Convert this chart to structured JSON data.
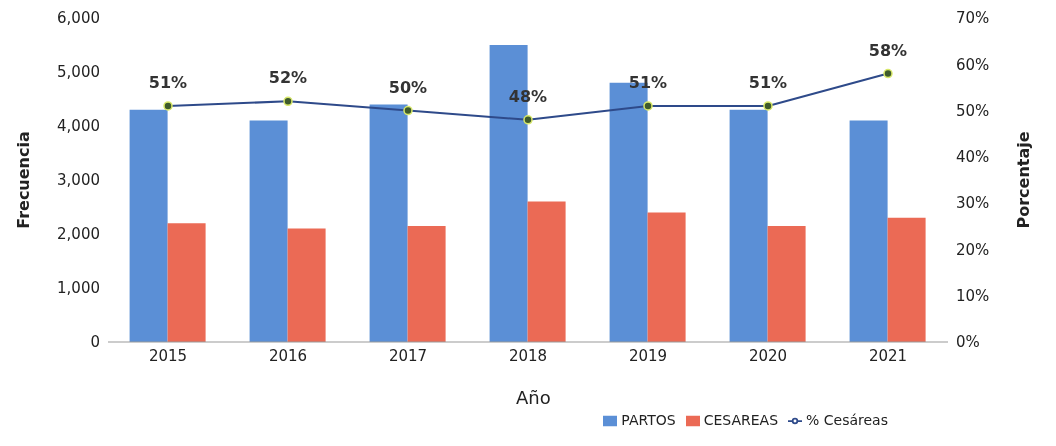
{
  "chart_data": {
    "type": "bar",
    "categories": [
      "2015",
      "2016",
      "2017",
      "2018",
      "2019",
      "2020",
      "2021"
    ],
    "xlabel": "Año",
    "ylabel": "Frecuencia",
    "y2label": "Porcentaje",
    "series": [
      {
        "name": "PARTOS",
        "color": "#5b8fd6",
        "values": [
          4300,
          4100,
          4400,
          5500,
          4800,
          4300,
          4100
        ]
      },
      {
        "name": "CESAREAS",
        "color": "#eb6a55",
        "values": [
          2200,
          2100,
          2150,
          2600,
          2400,
          2150,
          2300
        ]
      },
      {
        "name": "% Cesáreas",
        "type": "line",
        "axis": "y2",
        "color": "#2e4a8a",
        "marker": "circle",
        "values": [
          51,
          52,
          50,
          48,
          51,
          51,
          58
        ],
        "value_labels": [
          "51%",
          "52%",
          "50%",
          "48%",
          "51%",
          "51%",
          "58%"
        ]
      }
    ],
    "ylim": [
      0,
      6000
    ],
    "yticks": [
      {
        "value": 0,
        "label": "0"
      },
      {
        "value": 1000,
        "label": "1,000"
      },
      {
        "value": 2000,
        "label": "2,000"
      },
      {
        "value": 3000,
        "label": "3,000"
      },
      {
        "value": 4000,
        "label": "4,000"
      },
      {
        "value": 5000,
        "label": "5,000"
      },
      {
        "value": 6000,
        "label": "6,000"
      }
    ],
    "y2lim": [
      0,
      70
    ],
    "y2ticks": [
      {
        "value": 0,
        "label": "0%"
      },
      {
        "value": 10,
        "label": "10%"
      },
      {
        "value": 20,
        "label": "20%"
      },
      {
        "value": 30,
        "label": "30%"
      },
      {
        "value": 40,
        "label": "40%"
      },
      {
        "value": 50,
        "label": "50%"
      },
      {
        "value": 60,
        "label": "60%"
      },
      {
        "value": 70,
        "label": "70%"
      }
    ],
    "grid": false,
    "legend": "bottom right"
  }
}
